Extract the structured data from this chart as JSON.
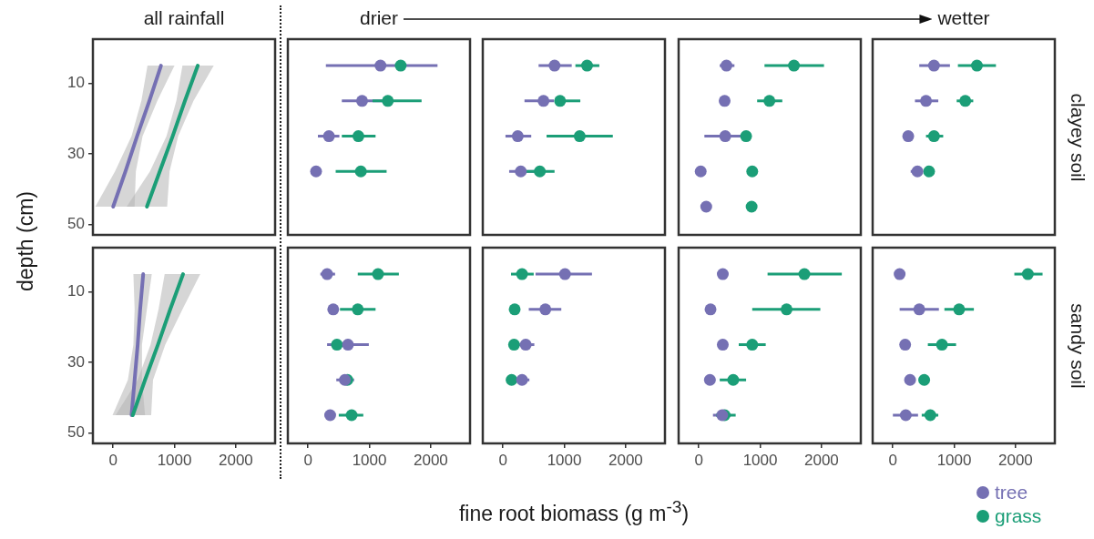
{
  "chart_data": [
    {
      "type": "line",
      "orientation": "horizontal",
      "title": "all rainfall",
      "ylabel": "depth (cm)",
      "xlim": [
        -330,
        2640
      ],
      "ylim": [
        53,
        -2.5
      ],
      "xticks": [
        0,
        1000,
        2000
      ],
      "yticks": [
        10,
        30,
        50
      ],
      "tick_labels": "y",
      "marker": "none",
      "series": [
        {
          "color": "#7570b3",
          "x": [
            5,
            15,
            25,
            35,
            45
          ],
          "values": [
            780,
            590,
            390,
            200,
            0
          ],
          "lower": [
            560,
            460,
            300,
            30,
            -290
          ],
          "upper": [
            1000,
            720,
            480,
            370,
            350
          ]
        },
        {
          "color": "#1b9e77",
          "x": [
            5,
            15,
            25,
            35,
            45
          ],
          "values": [
            1380,
            1170,
            970,
            760,
            550
          ],
          "lower": [
            1130,
            1030,
            870,
            600,
            220
          ],
          "upper": [
            1640,
            1310,
            1060,
            920,
            880
          ]
        }
      ]
    },
    {
      "type": "scatter",
      "title": "drier",
      "xlim": [
        -330,
        2640
      ],
      "ylim": [
        53,
        -2.5
      ],
      "xticks": [
        0,
        1000,
        2000
      ],
      "yticks": [
        10,
        30,
        50
      ],
      "tick_labels": false,
      "marker": "circle",
      "series": [
        {
          "color": "#7570b3",
          "x": [
            1180,
            880,
            340,
            130
          ],
          "values": [
            5,
            15,
            25,
            35
          ],
          "xerrors": [
            [
              290,
              2110
            ],
            [
              550,
              1220
            ],
            [
              160,
              510
            ],
            null
          ]
        },
        {
          "color": "#1b9e77",
          "x": [
            1510,
            1300,
            820,
            860
          ],
          "values": [
            5,
            15,
            25,
            35
          ],
          "xerrors": [
            null,
            [
              1050,
              1850
            ],
            [
              550,
              1100
            ],
            [
              450,
              1280
            ]
          ]
        }
      ]
    },
    {
      "type": "scatter",
      "xlim": [
        -330,
        2640
      ],
      "ylim": [
        53,
        -2.5
      ],
      "xticks": [
        0,
        1000,
        2000
      ],
      "yticks": [
        10,
        30,
        50
      ],
      "tick_labels": false,
      "marker": "circle",
      "series": [
        {
          "color": "#7570b3",
          "x": [
            840,
            660,
            240,
            290
          ],
          "values": [
            5,
            15,
            25,
            35
          ],
          "xerrors": [
            [
              580,
              1120
            ],
            [
              350,
              830
            ],
            [
              40,
              460
            ],
            [
              100,
              520
            ]
          ]
        },
        {
          "color": "#1b9e77",
          "x": [
            1370,
            930,
            1250,
            600
          ],
          "values": [
            5,
            15,
            25,
            35
          ],
          "xerrors": [
            [
              1180,
              1570
            ],
            [
              930,
              1260
            ],
            [
              710,
              1790
            ],
            [
              370,
              840
            ]
          ]
        }
      ]
    },
    {
      "type": "scatter",
      "xlim": [
        -330,
        2640
      ],
      "ylim": [
        53,
        -2.5
      ],
      "xticks": [
        0,
        1000,
        2000
      ],
      "yticks": [
        10,
        30,
        50
      ],
      "tick_labels": false,
      "marker": "circle",
      "series": [
        {
          "color": "#7570b3",
          "x": [
            450,
            420,
            430,
            30,
            120
          ],
          "values": [
            5,
            15,
            25,
            35,
            45
          ],
          "xerrors": [
            [
              340,
              580
            ],
            null,
            [
              90,
              680
            ],
            null,
            null
          ]
        },
        {
          "color": "#1b9e77",
          "x": [
            1550,
            1150,
            770,
            870,
            860
          ],
          "values": [
            5,
            15,
            25,
            35,
            45
          ],
          "xerrors": [
            [
              1070,
              2040
            ],
            [
              950,
              1360
            ],
            null,
            null,
            null
          ]
        }
      ]
    },
    {
      "type": "scatter",
      "title": "wetter",
      "y2label": "clayey soil",
      "xlim": [
        -330,
        2640
      ],
      "ylim": [
        53,
        -2.5
      ],
      "xticks": [
        0,
        1000,
        2000
      ],
      "yticks": [
        10,
        30,
        50
      ],
      "tick_labels": false,
      "marker": "circle",
      "series": [
        {
          "color": "#7570b3",
          "x": [
            670,
            540,
            250,
            400
          ],
          "values": [
            5,
            15,
            25,
            35
          ],
          "xerrors": [
            [
              430,
              930
            ],
            [
              360,
              740
            ],
            null,
            [
              290,
              480
            ]
          ]
        },
        {
          "color": "#1b9e77",
          "x": [
            1370,
            1180,
            670,
            590
          ],
          "values": [
            5,
            15,
            25,
            35
          ],
          "xerrors": [
            [
              1060,
              1680
            ],
            [
              1040,
              1310
            ],
            [
              540,
              820
            ],
            null
          ]
        }
      ]
    },
    {
      "type": "line",
      "orientation": "horizontal",
      "xlim": [
        -330,
        2640
      ],
      "ylim": [
        53,
        -2.5
      ],
      "xticks": [
        0,
        1000,
        2000
      ],
      "yticks": [
        10,
        30,
        50
      ],
      "marker": "none",
      "series": [
        {
          "color": "#7570b3",
          "x": [
            5,
            15,
            25,
            35,
            45
          ],
          "values": [
            490,
            440,
            400,
            350,
            300
          ],
          "lower": [
            330,
            350,
            330,
            240,
            -10
          ],
          "upper": [
            630,
            550,
            470,
            470,
            520
          ]
        },
        {
          "color": "#1b9e77",
          "x": [
            5,
            15,
            25,
            35,
            45
          ],
          "values": [
            1140,
            930,
            730,
            520,
            320
          ],
          "lower": [
            840,
            740,
            610,
            400,
            40
          ],
          "upper": [
            1420,
            1130,
            850,
            650,
            620
          ]
        }
      ]
    },
    {
      "type": "scatter",
      "xlim": [
        -330,
        2640
      ],
      "ylim": [
        53,
        -2.5
      ],
      "xticks": [
        0,
        1000,
        2000
      ],
      "yticks": [
        10,
        30,
        50
      ],
      "tick_labels": "x",
      "marker": "circle",
      "series": [
        {
          "color": "#7570b3",
          "x": [
            310,
            410,
            650,
            600,
            360
          ],
          "values": [
            5,
            15,
            25,
            35,
            45
          ],
          "xerrors": [
            [
              200,
              440
            ],
            null,
            [
              310,
              990
            ],
            [
              460,
              750
            ],
            null
          ]
        },
        {
          "color": "#1b9e77",
          "x": [
            1140,
            810,
            470,
            640,
            710
          ],
          "values": [
            5,
            15,
            25,
            35,
            45
          ],
          "xerrors": [
            [
              810,
              1480
            ],
            [
              520,
              1100
            ],
            null,
            null,
            [
              500,
              900
            ]
          ]
        }
      ]
    },
    {
      "type": "scatter",
      "xlabel": "fine root biomass (g m$^{-3}$)",
      "xlim": [
        -330,
        2640
      ],
      "ylim": [
        53,
        -2.5
      ],
      "xticks": [
        0,
        1000,
        2000
      ],
      "yticks": [
        10,
        30,
        50
      ],
      "tick_labels": "x",
      "marker": "circle",
      "series": [
        {
          "color": "#7570b3",
          "x": [
            1010,
            690,
            370,
            310
          ],
          "values": [
            5,
            15,
            25,
            35
          ],
          "xerrors": [
            [
              530,
              1450
            ],
            [
              420,
              950
            ],
            [
              250,
              510
            ],
            [
              220,
              430
            ]
          ]
        },
        {
          "color": "#1b9e77",
          "x": [
            310,
            190,
            180,
            140
          ],
          "values": [
            5,
            15,
            25,
            35
          ],
          "xerrors": [
            [
              130,
              500
            ],
            null,
            null,
            null
          ]
        }
      ]
    },
    {
      "type": "scatter",
      "xlim": [
        -330,
        2640
      ],
      "ylim": [
        53,
        -2.5
      ],
      "xticks": [
        0,
        1000,
        2000
      ],
      "yticks": [
        10,
        30,
        50
      ],
      "tick_labels": "x",
      "marker": "circle",
      "series": [
        {
          "color": "#7570b3",
          "x": [
            390,
            190,
            390,
            180,
            380
          ],
          "values": [
            5,
            15,
            25,
            35,
            45
          ],
          "xerrors": [
            null,
            null,
            null,
            null,
            [
              230,
              520
            ]
          ]
        },
        {
          "color": "#1b9e77",
          "x": [
            1720,
            1430,
            870,
            560,
            420
          ],
          "values": [
            5,
            15,
            25,
            35,
            45
          ],
          "xerrors": [
            [
              1120,
              2330
            ],
            [
              870,
              1980
            ],
            [
              650,
              1090
            ],
            [
              340,
              770
            ],
            [
              280,
              600
            ]
          ]
        }
      ]
    },
    {
      "type": "scatter",
      "y2label": "sandy soil",
      "legend": "bottom right",
      "xlim": [
        -330,
        2640
      ],
      "ylim": [
        53,
        -2.5
      ],
      "xticks": [
        0,
        1000,
        2000
      ],
      "yticks": [
        10,
        30,
        50
      ],
      "tick_labels": "x",
      "marker": "circle",
      "series": [
        {
          "name": "tree",
          "color": "#7570b3",
          "x": [
            110,
            430,
            200,
            280,
            210
          ],
          "values": [
            5,
            15,
            25,
            35,
            45
          ],
          "xerrors": [
            null,
            [
              110,
              750
            ],
            null,
            null,
            [
              0,
              410
            ]
          ]
        },
        {
          "name": "grass",
          "color": "#1b9e77",
          "x": [
            2200,
            1080,
            800,
            510,
            610
          ],
          "values": [
            5,
            15,
            25,
            35,
            45
          ],
          "xerrors": [
            [
              1980,
              2440
            ],
            [
              840,
              1320
            ],
            [
              570,
              1030
            ],
            null,
            [
              470,
              740
            ]
          ]
        }
      ]
    }
  ]
}
